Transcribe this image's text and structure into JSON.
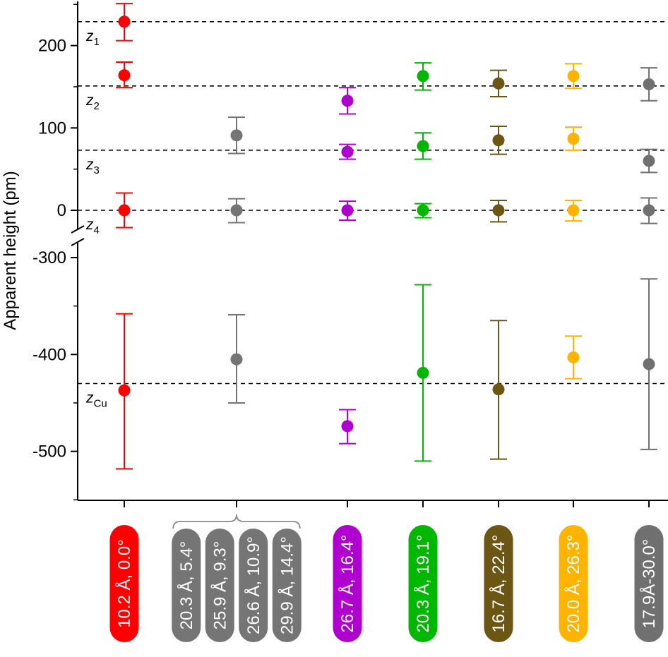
{
  "chart_data": {
    "type": "scatter",
    "title": "",
    "xlabel": "",
    "ylabel": "Apparent height (pm)",
    "y_axis_broken": true,
    "upper_ylim": [
      -35,
      255
    ],
    "lower_ylim": [
      -550,
      -290
    ],
    "upper_ticks": [
      0,
      100,
      200
    ],
    "lower_ticks": [
      -500,
      -400,
      -300
    ],
    "grid": false,
    "reference_lines": [
      {
        "name": "z_1",
        "symbol": "z",
        "subscript": "1",
        "value": 229
      },
      {
        "name": "z_2",
        "symbol": "z",
        "subscript": "2",
        "value": 151
      },
      {
        "name": "z_3",
        "symbol": "z",
        "subscript": "3",
        "value": 73
      },
      {
        "name": "z_4",
        "symbol": "z",
        "subscript": "4",
        "value": 0
      },
      {
        "name": "z_Cu",
        "symbol": "z",
        "subscript": "Cu",
        "value": -430
      }
    ],
    "groups": [
      {
        "name": "group-1",
        "color": "#ff0000",
        "labels": [
          "10.2 Å, 0.0°"
        ],
        "points": [
          {
            "y": 229,
            "err_low": 206,
            "err_high": 251
          },
          {
            "y": 164,
            "err_low": 149,
            "err_high": 180
          },
          {
            "y": 0,
            "err_low": -21,
            "err_high": 21
          },
          {
            "y": -437,
            "err_low": -518,
            "err_high": -358
          }
        ]
      },
      {
        "name": "group-2",
        "color": "#757575",
        "labels": [
          "20.3 Å, 5.4°",
          "25.9 Å, 9.3°",
          "26.6 Å, 10.9°",
          "29.9 Å, 14.4°"
        ],
        "points": [
          {
            "y": 91,
            "err_low": 69,
            "err_high": 113
          },
          {
            "y": 0,
            "err_low": -15,
            "err_high": 14
          },
          {
            "y": -405,
            "err_low": -450,
            "err_high": -359
          }
        ]
      },
      {
        "name": "group-3",
        "color": "#b000d0",
        "labels": [
          "26.7 Å, 16.4°"
        ],
        "points": [
          {
            "y": 133,
            "err_low": 117,
            "err_high": 149
          },
          {
            "y": 71,
            "err_low": 62,
            "err_high": 80
          },
          {
            "y": 0,
            "err_low": -12,
            "err_high": 11
          },
          {
            "y": -474,
            "err_low": -492,
            "err_high": -457
          }
        ]
      },
      {
        "name": "group-4",
        "color": "#00b800",
        "labels": [
          "20.3 Å, 19.1°"
        ],
        "points": [
          {
            "y": 163,
            "err_low": 146,
            "err_high": 179
          },
          {
            "y": 78,
            "err_low": 62,
            "err_high": 94
          },
          {
            "y": 0,
            "err_low": -9,
            "err_high": 8
          },
          {
            "y": -419,
            "err_low": -510,
            "err_high": -328
          }
        ]
      },
      {
        "name": "group-5",
        "color": "#6b5614",
        "labels": [
          "16.7 Å, 22.4°"
        ],
        "points": [
          {
            "y": 154,
            "err_low": 138,
            "err_high": 170
          },
          {
            "y": 85,
            "err_low": 68,
            "err_high": 102
          },
          {
            "y": 0,
            "err_low": -14,
            "err_high": 12
          },
          {
            "y": -436,
            "err_low": -508,
            "err_high": -365
          }
        ]
      },
      {
        "name": "group-6",
        "color": "#ffb400",
        "labels": [
          "20.0 Å, 26.3°"
        ],
        "points": [
          {
            "y": 163,
            "err_low": 148,
            "err_high": 178
          },
          {
            "y": 87,
            "err_low": 73,
            "err_high": 101
          },
          {
            "y": 0,
            "err_low": -13,
            "err_high": 12
          },
          {
            "y": -403,
            "err_low": -425,
            "err_high": -381
          }
        ]
      },
      {
        "name": "group-7",
        "color": "#707070",
        "labels": [
          "17.9Å-30.0°"
        ],
        "points": [
          {
            "y": 153,
            "err_low": 133,
            "err_high": 173
          },
          {
            "y": 60,
            "err_low": 46,
            "err_high": 74
          },
          {
            "y": 0,
            "err_low": -16,
            "err_high": 15
          },
          {
            "y": -410,
            "err_low": -498,
            "err_high": -322
          }
        ]
      }
    ]
  }
}
